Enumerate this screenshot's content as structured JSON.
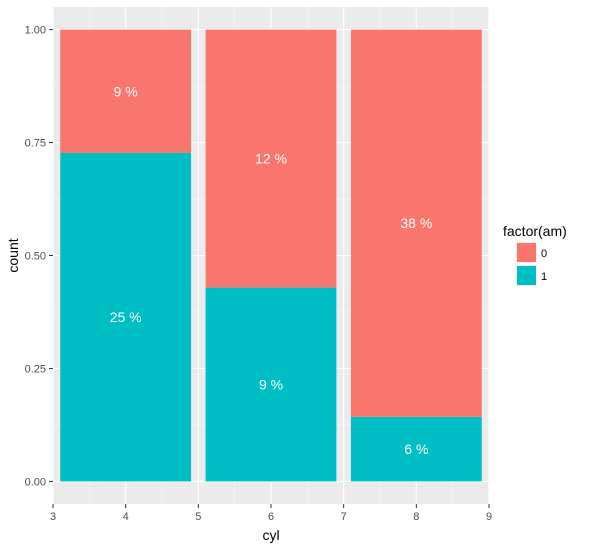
{
  "chart_data": {
    "type": "bar",
    "stacked": true,
    "xlabel": "cyl",
    "ylabel": "count",
    "xlim": [
      3,
      9
    ],
    "ylim": [
      0,
      1
    ],
    "x_ticks": [
      3,
      4,
      5,
      6,
      7,
      8,
      9
    ],
    "y_ticks": [
      "0.00",
      "0.25",
      "0.50",
      "0.75",
      "1.00"
    ],
    "y_tick_values": [
      0,
      0.25,
      0.5,
      0.75,
      1.0
    ],
    "bars": [
      {
        "x_start": 3.1,
        "x_end": 4.9,
        "series": [
          {
            "group": "1",
            "value": 0.727,
            "label": "25 %"
          },
          {
            "group": "0",
            "value": 0.273,
            "label": "9 %"
          }
        ]
      },
      {
        "x_start": 5.1,
        "x_end": 6.9,
        "series": [
          {
            "group": "1",
            "value": 0.429,
            "label": "9 %"
          },
          {
            "group": "0",
            "value": 0.571,
            "label": "12 %"
          }
        ]
      },
      {
        "x_start": 7.1,
        "x_end": 8.9,
        "series": [
          {
            "group": "1",
            "value": 0.143,
            "label": "6 %"
          },
          {
            "group": "0",
            "value": 0.857,
            "label": "38 %"
          }
        ]
      }
    ],
    "legend": {
      "title": "factor(am)",
      "position": "right",
      "items": [
        {
          "label": "0",
          "color": "#F8766D"
        },
        {
          "label": "1",
          "color": "#00BFC4"
        }
      ]
    },
    "colors": {
      "0": "#F8766D",
      "1": "#00BFC4"
    },
    "grid": true
  }
}
